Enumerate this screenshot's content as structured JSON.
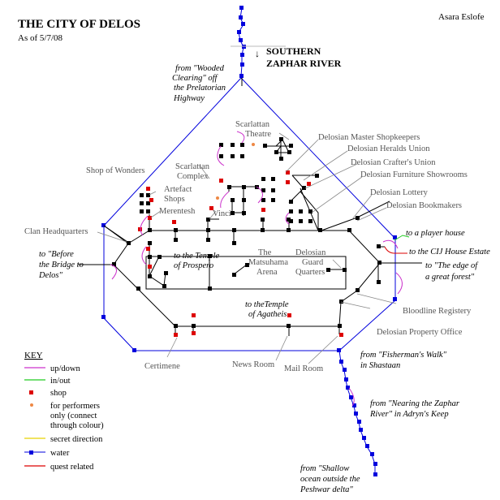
{
  "title": "THE CITY OF DELOS",
  "as_of": "As of 5/7/08",
  "author": "Asara Eslofe",
  "river": {
    "line1": "SOUTHERN",
    "line2": "ZAPHAR RIVER"
  },
  "labels": {
    "theatre1": "Scarlattan",
    "theatre2": "Theatre",
    "complex1": "Scarlattan",
    "complex2": "Complex",
    "shop_wonders": "Shop of Wonders",
    "artefact1": "Artefact",
    "artefact2": "Shops",
    "merentesh": "Merentesh",
    "vinci": "Vinci",
    "clan_hq": "Clan Headquarters",
    "matsuhama1": "The",
    "matsuhama2": "Matsuhama",
    "matsuhama3": "Arena",
    "guard1": "Delosian",
    "guard2": "Guard",
    "guard3": "Quarters",
    "master_shop": "Delosian Master Shopkeepers",
    "heralds": "Delosian Heralds Union",
    "crafters": "Delosian Crafter's Union",
    "furniture": "Delosian Furniture Showrooms",
    "lottery": "Delosian Lottery",
    "bookmakers": "Delosian Bookmakers",
    "bloodline": "Bloodline Registery",
    "property": "Delosian Property Office",
    "certimene": "Certimene",
    "news_room": "News Room",
    "mail_room": "Mail Room"
  },
  "exits": {
    "wooded": [
      "from \"Wooded",
      "Clearing\" off",
      "the Prelatorian",
      "Highway"
    ],
    "bridge": [
      "to \"Before",
      "the Bridge to",
      "Delos\""
    ],
    "prospero": [
      "to the Temple",
      "of Prospero"
    ],
    "agatheis": [
      "to theTemple",
      "of Agatheis"
    ],
    "player_house": "to a player house",
    "cij": "to the CIJ House Estate",
    "forest": [
      "to \"The edge of",
      "a great forest\""
    ],
    "fishermans": [
      "from \"Fisherman's Walk\"",
      "in Shastaan"
    ],
    "nearing": [
      "from \"Nearing the Zaphar",
      "River\" in Adryn's Keep"
    ],
    "shallow": [
      "from \"Shallow",
      "ocean outside the",
      "Peshwar delta\""
    ]
  },
  "key": {
    "heading": "KEY",
    "items": [
      {
        "label": "up/down",
        "color": "#cc33cc",
        "kind": "line"
      },
      {
        "label": "in/out",
        "color": "#22cc22",
        "kind": "line"
      },
      {
        "label": "shop",
        "color": "#dd0000",
        "kind": "square"
      },
      {
        "label": "for performers",
        "label2": "only (connect",
        "label3": "through colour)",
        "color": "#ee8844",
        "kind": "dot"
      },
      {
        "label": "secret direction",
        "color": "#e6d200",
        "kind": "line"
      },
      {
        "label": "water",
        "color": "#0000dd",
        "kind": "waterline"
      },
      {
        "label": "quest related",
        "color": "#dd0000",
        "kind": "line"
      }
    ]
  },
  "colors": {
    "water": "#0000dd",
    "shop": "#dd0000",
    "road": "#000000",
    "updown": "#cc33cc",
    "inout": "#22cc22",
    "quest": "#dd0000",
    "performer": "#ee8844"
  }
}
